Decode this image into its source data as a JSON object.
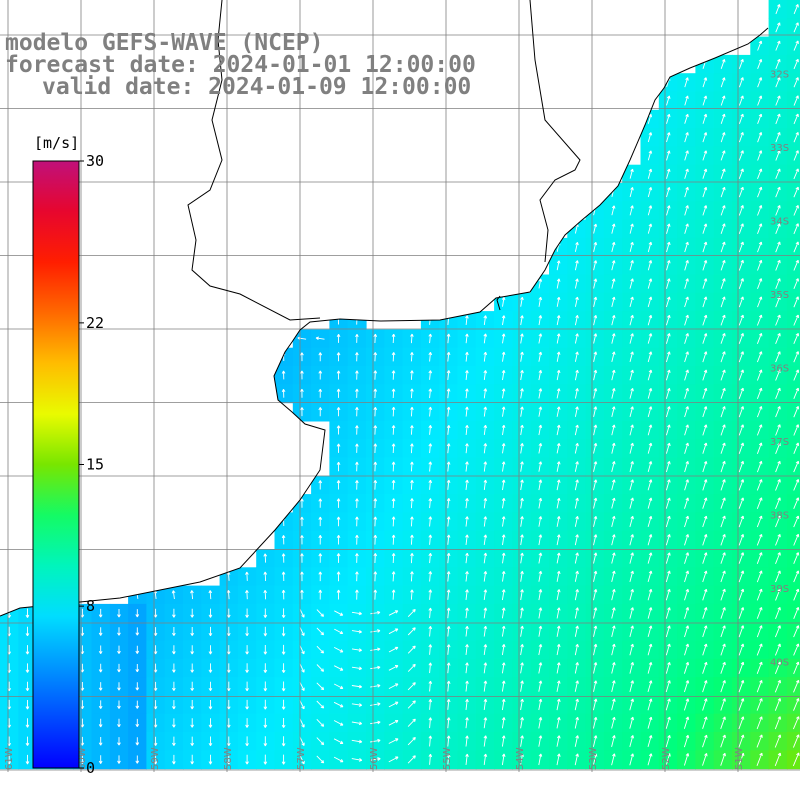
{
  "title": {
    "line1": "modelo GEFS-WAVE (NCEP)",
    "line2": "forecast date: 2024-01-01 12:00:00",
    "line3": "valid date: 2024-01-09 12:00:00"
  },
  "colorbar": {
    "unit": "[m/s]",
    "min": 0,
    "max": 30,
    "ticks": [
      {
        "value": 30,
        "label": "30"
      },
      {
        "value": 22,
        "label": "22"
      },
      {
        "value": 15,
        "label": "15"
      },
      {
        "value": 8,
        "label": "8"
      },
      {
        "value": 0,
        "label": "0"
      }
    ],
    "colors": [
      "#0000ff",
      "#00aaff",
      "#00ffff",
      "#00ff00",
      "#ffff00",
      "#ff8800",
      "#ff0000",
      "#c0107a"
    ]
  },
  "lon_labels": [
    "61W",
    "60W",
    "59W",
    "58W",
    "57W",
    "56W",
    "55W",
    "54W",
    "53W",
    "52W",
    "51W"
  ],
  "lat_labels": [
    "32S",
    "33S",
    "34S",
    "35S",
    "36S",
    "37S",
    "38S",
    "39S",
    "40S"
  ],
  "colors": {
    "land": "#ffffff",
    "coast": "#000000",
    "grid": "#7f7f7f",
    "arrow": "#ffffff",
    "label": "#808080"
  }
}
